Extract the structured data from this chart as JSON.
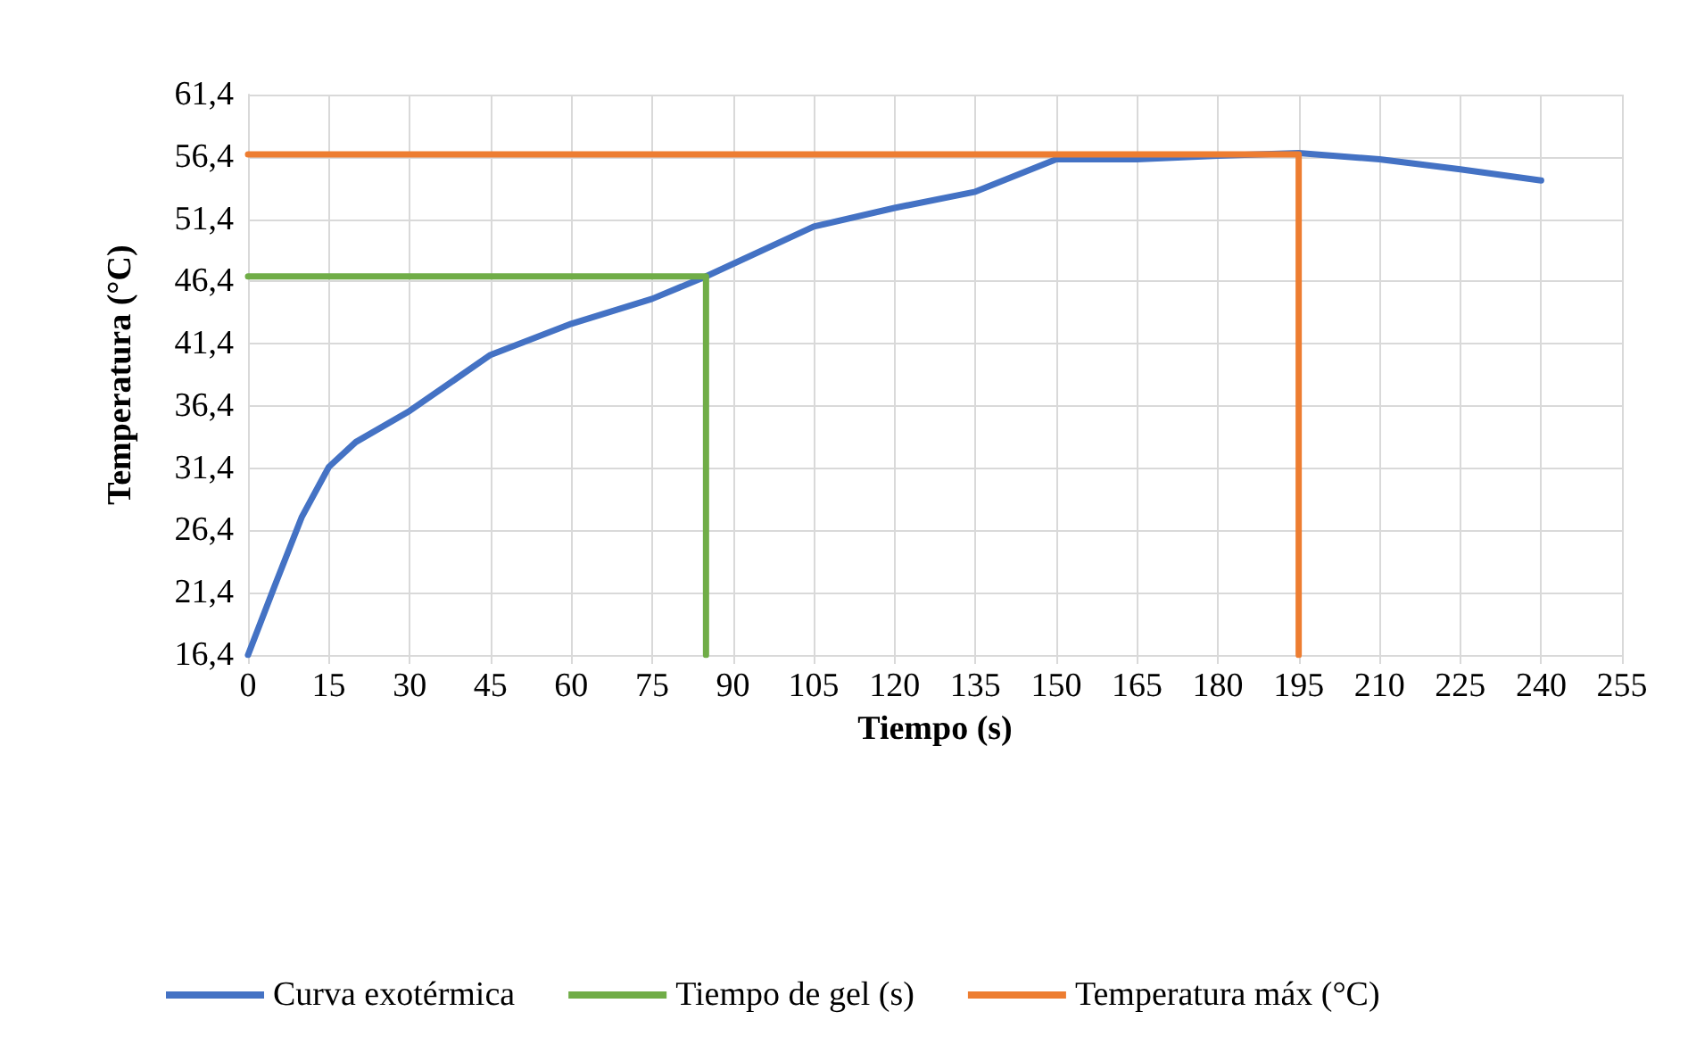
{
  "chart_data": {
    "type": "line",
    "xlabel": "Tiempo (s)",
    "ylabel": "Temperatura (°C)",
    "xlim": [
      0,
      255
    ],
    "xticks": [
      0,
      15,
      30,
      45,
      60,
      75,
      90,
      105,
      120,
      135,
      150,
      165,
      180,
      195,
      210,
      225,
      240,
      255
    ],
    "ylim": [
      16.4,
      61.4
    ],
    "yticks": [
      {
        "value": 16.4,
        "label": "16,4"
      },
      {
        "value": 21.4,
        "label": "21,4"
      },
      {
        "value": 26.4,
        "label": "26,4"
      },
      {
        "value": 31.4,
        "label": "31,4"
      },
      {
        "value": 36.4,
        "label": "36,4"
      },
      {
        "value": 41.4,
        "label": "41,4"
      },
      {
        "value": 46.4,
        "label": "46,4"
      },
      {
        "value": 51.4,
        "label": "51,4"
      },
      {
        "value": 56.4,
        "label": "56,4"
      },
      {
        "value": 61.4,
        "label": "61,4"
      }
    ],
    "grid": true,
    "legend": "bottom",
    "marker": "none",
    "line_style": "solid",
    "series": [
      {
        "name": "Curva exotérmica",
        "color": "#4472c4",
        "x": [
          0,
          5,
          10,
          15,
          20,
          30,
          45,
          60,
          75,
          85,
          90,
          105,
          120,
          135,
          150,
          165,
          180,
          195,
          210,
          225,
          240
        ],
        "values": [
          16.4,
          22,
          27.5,
          31.5,
          33.5,
          36,
          40.5,
          43,
          45,
          46.8,
          47.8,
          50.8,
          52.3,
          53.6,
          56.2,
          56.2,
          56.5,
          56.7,
          56.2,
          55.4,
          54.5
        ]
      },
      {
        "name": "Tiempo de gel (s)",
        "color": "#70ad47",
        "x": [
          0,
          85,
          85
        ],
        "values": [
          46.8,
          46.8,
          16.4
        ]
      },
      {
        "name": "Temperatura máx (°C)",
        "color": "#ed7d31",
        "x": [
          0,
          195,
          195
        ],
        "values": [
          56.6,
          56.6,
          16.4
        ]
      }
    ]
  }
}
